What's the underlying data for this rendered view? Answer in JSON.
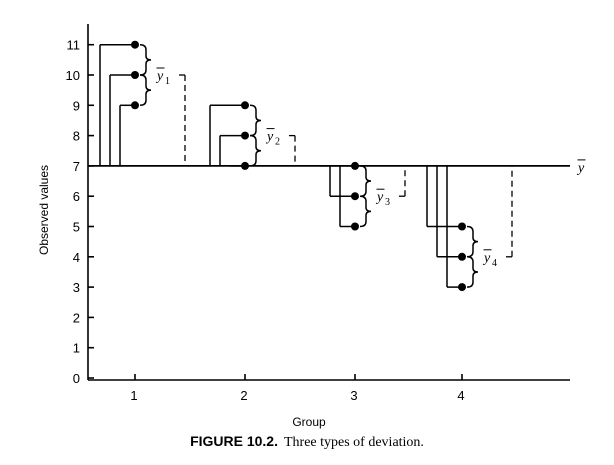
{
  "caption": {
    "label": "FIGURE 10.2.",
    "text": "Three types of deviation."
  },
  "chart_data": {
    "type": "scatter",
    "xlabel": "Group",
    "ylabel": "Observed values",
    "x_ticks": [
      "1",
      "2",
      "3",
      "4"
    ],
    "y_ticks": [
      0,
      1,
      2,
      3,
      4,
      5,
      6,
      7,
      8,
      9,
      10,
      11
    ],
    "ylim": [
      0,
      11.5
    ],
    "grid": false,
    "grand_mean": {
      "value": 7,
      "label": "y"
    },
    "groups": [
      {
        "group": "1",
        "values": [
          11,
          10,
          9
        ],
        "mean": 10,
        "mean_label": "y",
        "mean_sub": "1"
      },
      {
        "group": "2",
        "values": [
          9,
          8,
          7
        ],
        "mean": 8,
        "mean_label": "y",
        "mean_sub": "2"
      },
      {
        "group": "3",
        "values": [
          7,
          6,
          5
        ],
        "mean": 6,
        "mean_label": "y",
        "mean_sub": "3"
      },
      {
        "group": "4",
        "values": [
          5,
          4,
          3
        ],
        "mean": 4,
        "mean_label": "y",
        "mean_sub": "4"
      }
    ]
  }
}
